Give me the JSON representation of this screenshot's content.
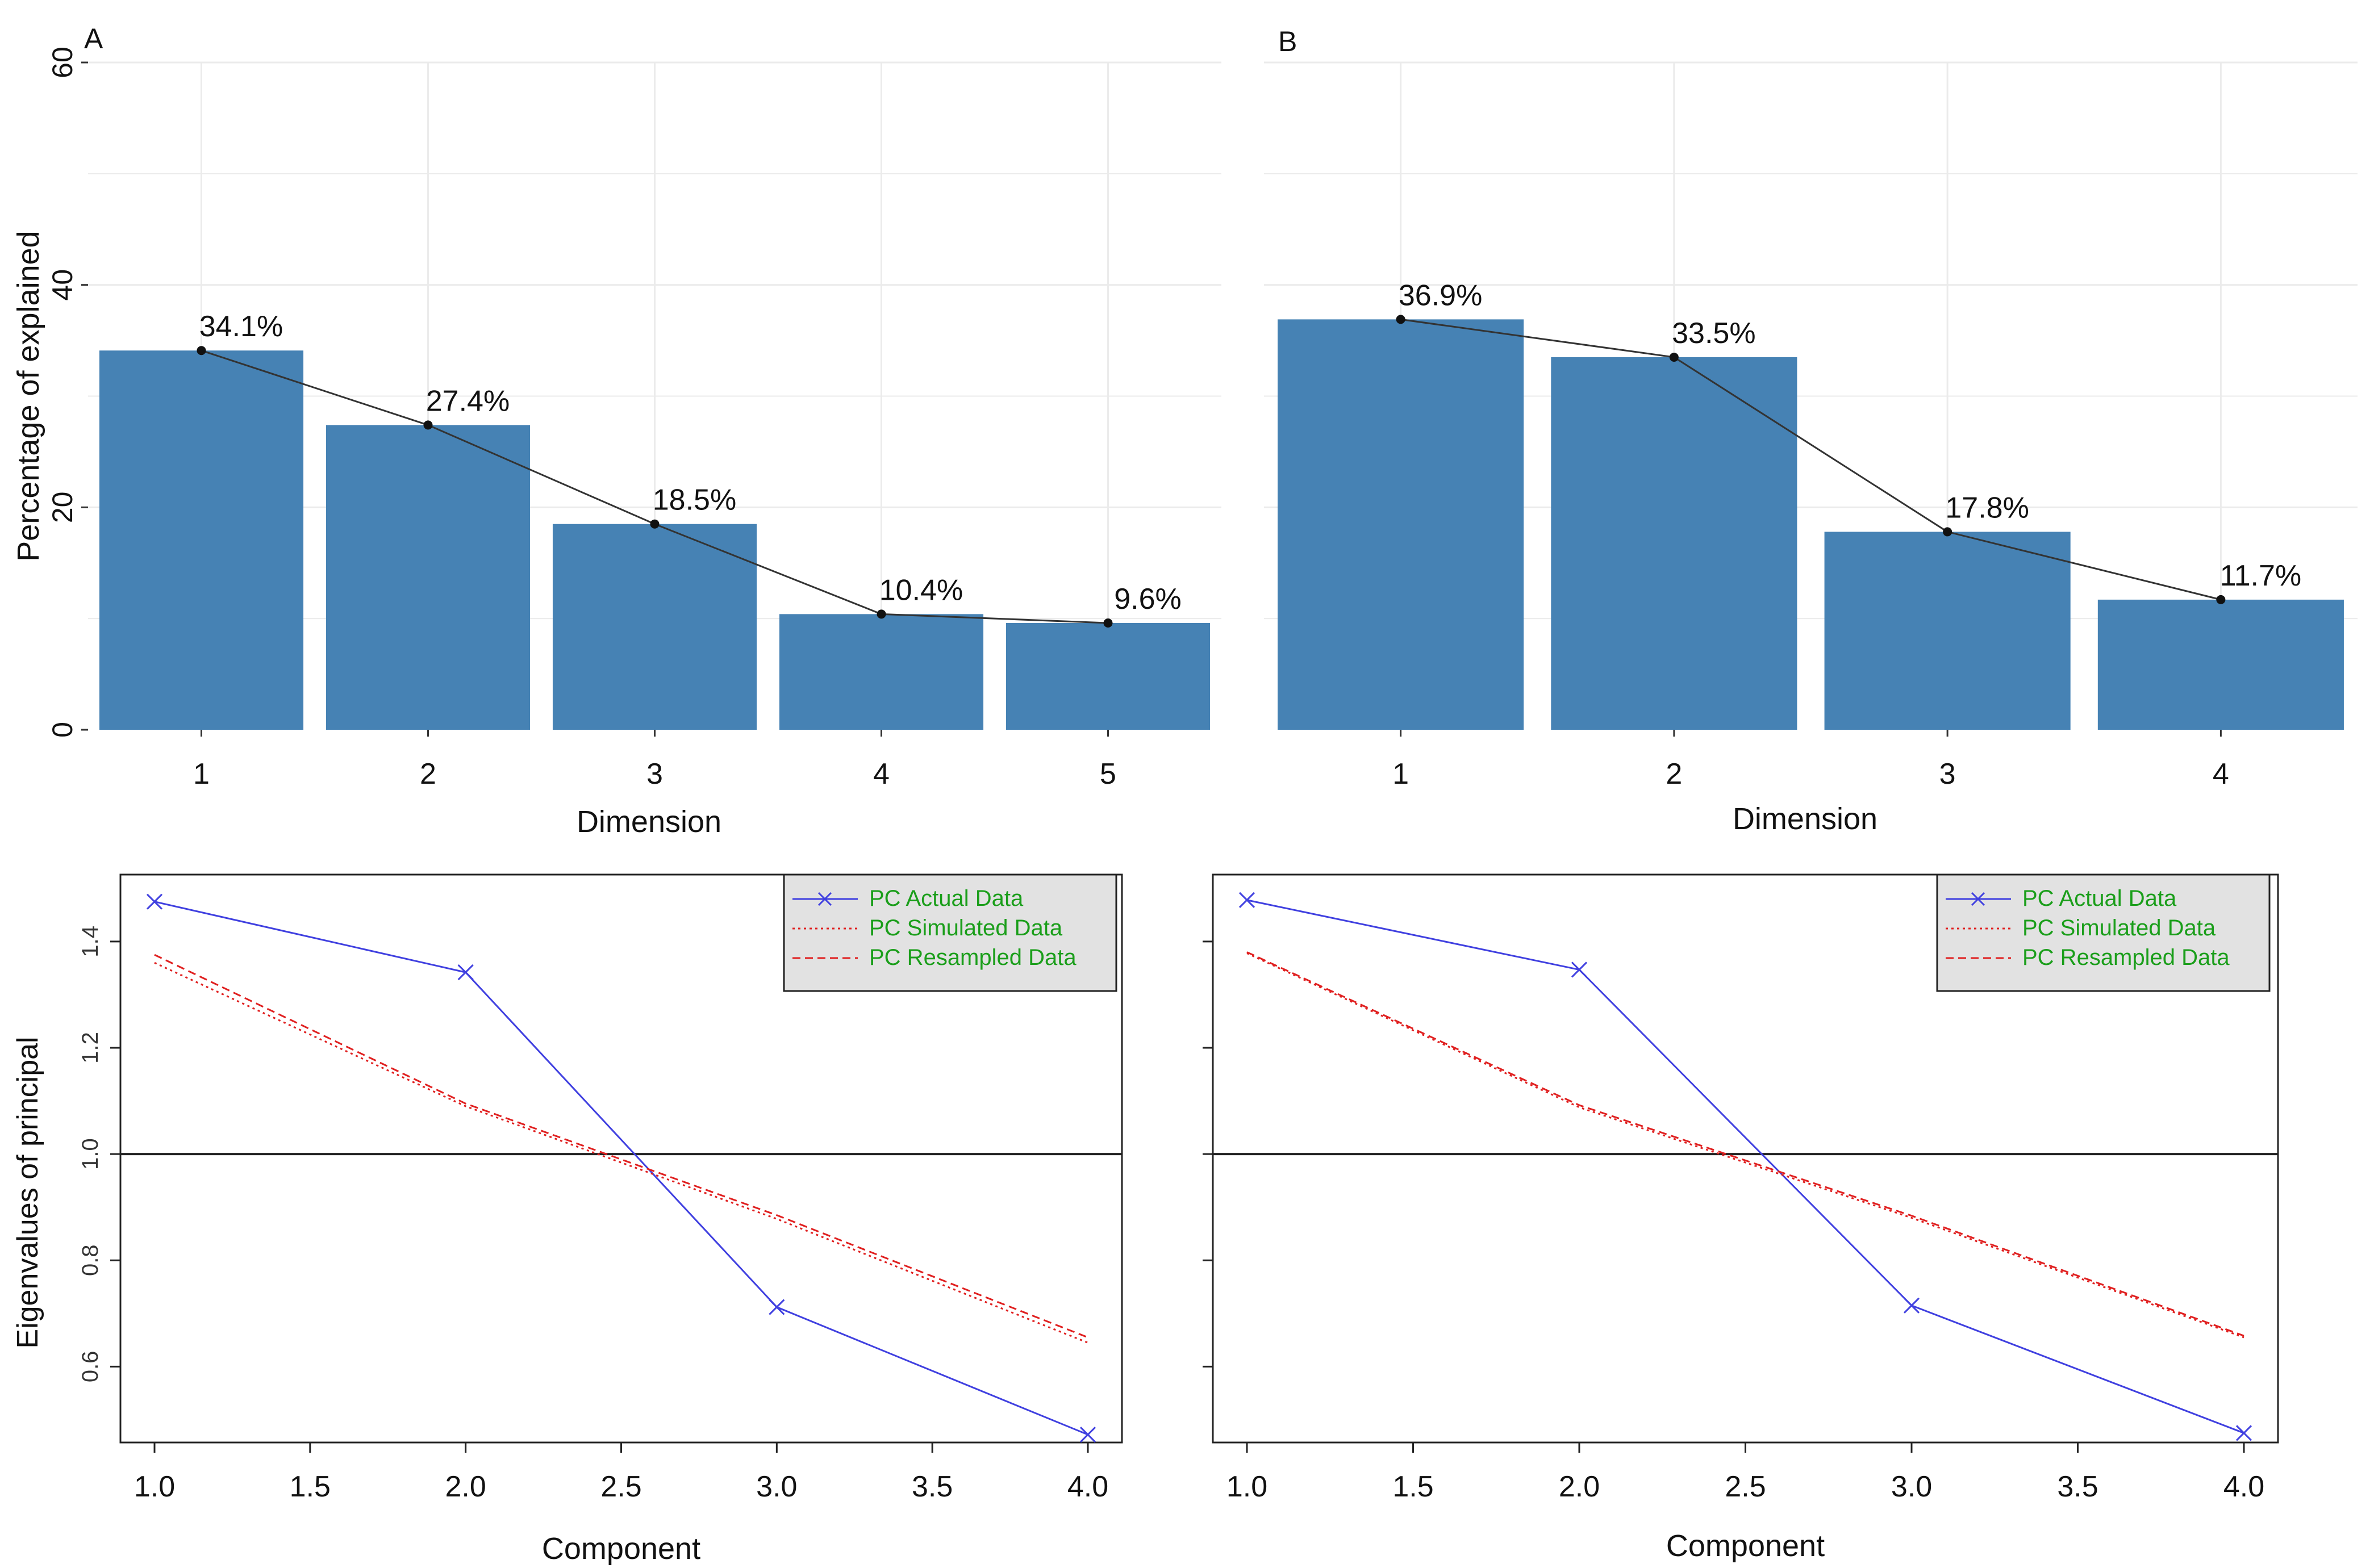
{
  "panels": [
    {
      "id": "a",
      "letter": "A"
    },
    {
      "id": "b",
      "letter": "B"
    }
  ],
  "chart_data": [
    {
      "type": "bar",
      "id": "scree-a",
      "panel_label": "A",
      "categories": [
        "1",
        "2",
        "3",
        "4",
        "5"
      ],
      "values": [
        34.1,
        27.4,
        18.5,
        10.4,
        9.6
      ],
      "data_labels": [
        "34.1%",
        "27.4%",
        "18.5%",
        "10.4%",
        "9.6%"
      ],
      "xlabel": "Dimension",
      "ylabel": "Percentage of explained",
      "ylim": [
        0,
        60
      ],
      "yticks": [
        "0",
        "20",
        "40",
        "60"
      ],
      "grid": true,
      "bar_color": "#4682b4",
      "line_color": "#333333"
    },
    {
      "type": "bar",
      "id": "scree-b",
      "panel_label": "B",
      "categories": [
        "1",
        "2",
        "3",
        "4"
      ],
      "values": [
        36.9,
        33.5,
        17.8,
        11.7
      ],
      "data_labels": [
        "36.9%",
        "33.5%",
        "17.8%",
        "11.7%"
      ],
      "xlabel": "Dimension",
      "ylabel": "",
      "ylim": [
        0,
        60
      ],
      "yticks": [],
      "grid": true,
      "bar_color": "#4682b4",
      "line_color": "#333333"
    },
    {
      "type": "line",
      "id": "parallel-a",
      "x": [
        1,
        2,
        3,
        4
      ],
      "series": [
        {
          "name": "PC  Actual Data",
          "values": [
            1.475,
            1.342,
            0.712,
            0.472
          ],
          "color": "#4040e0",
          "style": "solid",
          "marker": "x"
        },
        {
          "name": "PC  Simulated Data",
          "values": [
            1.36,
            1.09,
            0.878,
            0.645
          ],
          "color": "#e02020",
          "style": "dotted"
        },
        {
          "name": "PC  Resampled Data",
          "values": [
            1.375,
            1.095,
            0.885,
            0.655
          ],
          "color": "#e02020",
          "style": "dashed"
        }
      ],
      "reference_line": 1.0,
      "xlabel": "Component",
      "ylabel": "Eigenvalues of principal",
      "xlim": [
        1.0,
        4.0
      ],
      "ylim": [
        0.5,
        1.5
      ],
      "xticks": [
        "1.0",
        "1.5",
        "2.0",
        "2.5",
        "3.0",
        "3.5",
        "4.0"
      ],
      "yticks": [
        "0.6",
        "0.8",
        "1.0",
        "1.2",
        "1.4"
      ],
      "legend_position": "top-right",
      "legend_text_color": "#1a9e1a",
      "legend_bg": "#e2e2e2"
    },
    {
      "type": "line",
      "id": "parallel-b",
      "x": [
        1,
        2,
        3,
        4
      ],
      "series": [
        {
          "name": "PC  Actual Data",
          "values": [
            1.478,
            1.347,
            0.715,
            0.475
          ],
          "color": "#4040e0",
          "style": "solid",
          "marker": "x"
        },
        {
          "name": "PC  Simulated Data",
          "values": [
            1.378,
            1.088,
            0.88,
            0.655
          ],
          "color": "#e02020",
          "style": "dotted"
        },
        {
          "name": "PC  Resampled Data",
          "values": [
            1.38,
            1.092,
            0.884,
            0.658
          ],
          "color": "#e02020",
          "style": "dashed"
        }
      ],
      "reference_line": 1.0,
      "xlabel": "Component",
      "ylabel": "",
      "xlim": [
        1.0,
        4.0
      ],
      "ylim": [
        0.5,
        1.5
      ],
      "xticks": [
        "1.0",
        "1.5",
        "2.0",
        "2.5",
        "3.0",
        "3.5",
        "4.0"
      ],
      "yticks": [],
      "legend_position": "top-right",
      "legend_text_color": "#1a9e1a",
      "legend_bg": "#e2e2e2"
    }
  ]
}
